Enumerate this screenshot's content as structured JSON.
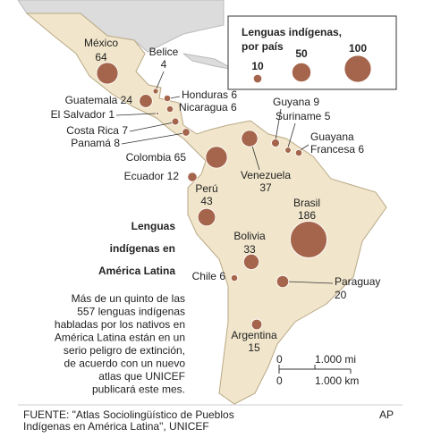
{
  "legend": {
    "title": [
      "Lenguas indígenas,",
      "por país"
    ],
    "sizes": [
      10,
      50,
      100
    ]
  },
  "countries": [
    {
      "name": "México",
      "value": 64
    },
    {
      "name": "Belice",
      "value": 4
    },
    {
      "name": "Honduras",
      "value": 6
    },
    {
      "name": "Guatemala",
      "value": 24
    },
    {
      "name": "Nicaragua",
      "value": 6
    },
    {
      "name": "El Salvador",
      "value": 1
    },
    {
      "name": "Costa Rica",
      "value": 7
    },
    {
      "name": "Panamá",
      "value": 8
    },
    {
      "name": "Colombia",
      "value": 65
    },
    {
      "name": "Venezuela",
      "value": 37
    },
    {
      "name": "Guyana",
      "value": 9
    },
    {
      "name": "Suriname",
      "value": 5
    },
    {
      "name": [
        "Guayana",
        "Francesa"
      ],
      "value": 6
    },
    {
      "name": "Ecuador",
      "value": 12
    },
    {
      "name": "Perú",
      "value": 43
    },
    {
      "name": "Brasil",
      "value": 186
    },
    {
      "name": "Bolivia",
      "value": 33
    },
    {
      "name": "Chile",
      "value": 6
    },
    {
      "name": "Paraguay",
      "value": 20
    },
    {
      "name": "Argentina",
      "value": 15
    }
  ],
  "title": [
    "Lenguas",
    "indígenas en",
    "América Latina"
  ],
  "description": [
    "Más de un quinto de las",
    "557 lenguas indígenas",
    "habladas por los nativos en",
    "América Latina están en un",
    "serio peligro de extinción,",
    "de acuerdo con un nuevo",
    "atlas que UNICEF",
    "publicará este mes."
  ],
  "scale": {
    "mi": {
      "start": "0",
      "end": "1.000 mi"
    },
    "km": {
      "start": "0",
      "end": "1.000 km"
    }
  },
  "source": [
    "FUENTE: \"Atlas Sociolingüístico de Pueblos",
    "Indígenas en América Latina\", UNICEF"
  ],
  "credit": "AP"
}
